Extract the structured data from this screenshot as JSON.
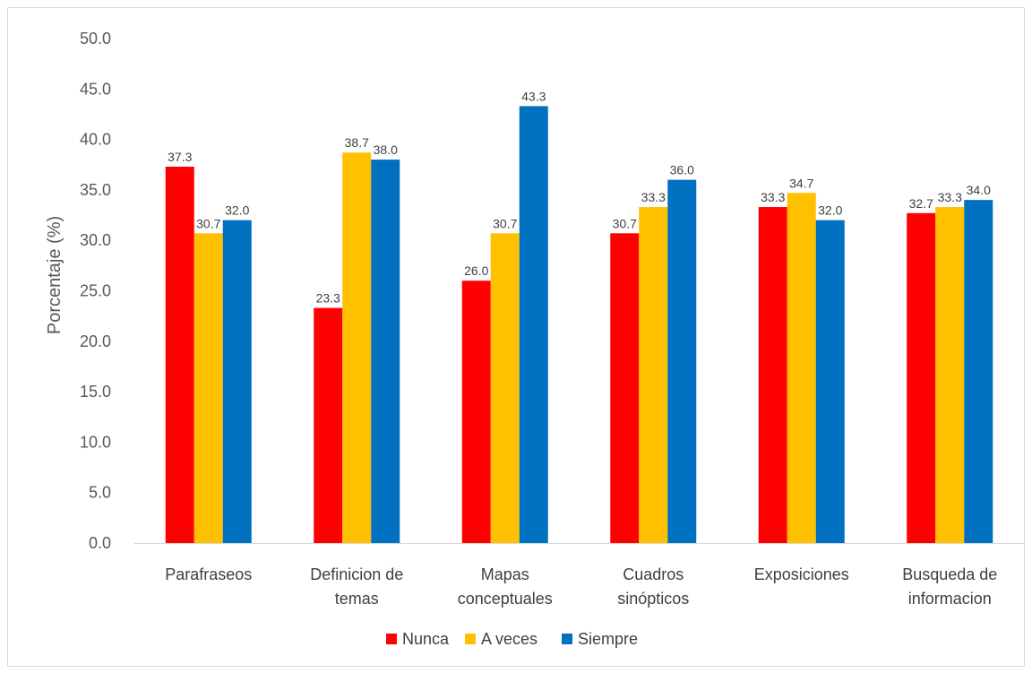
{
  "chart_data": {
    "type": "bar",
    "categories": [
      [
        "Parafraseos"
      ],
      [
        "Definicion de",
        "temas"
      ],
      [
        "Mapas",
        "conceptuales"
      ],
      [
        "Cuadros",
        "sinópticos"
      ],
      [
        "Exposiciones"
      ],
      [
        "Busqueda de",
        "informacion"
      ]
    ],
    "series": [
      {
        "name": "Nunca",
        "color": "#ff0000",
        "values": [
          37.3,
          23.3,
          26.0,
          30.7,
          33.3,
          32.7
        ]
      },
      {
        "name": "A veces",
        "color": "#ffc000",
        "values": [
          30.7,
          38.7,
          30.7,
          33.3,
          34.7,
          33.3
        ]
      },
      {
        "name": "Siempre",
        "color": "#0070c0",
        "values": [
          32.0,
          38.0,
          43.3,
          36.0,
          32.0,
          34.0
        ]
      }
    ],
    "ylabel": "Porcentaje (%)",
    "ylim": [
      0,
      50
    ],
    "yticks": [
      0,
      5,
      10,
      15,
      20,
      25,
      30,
      35,
      40,
      45,
      50
    ],
    "tick_decimals": 1,
    "label_decimals": 1,
    "grid": false,
    "legend_position": "bottom"
  }
}
